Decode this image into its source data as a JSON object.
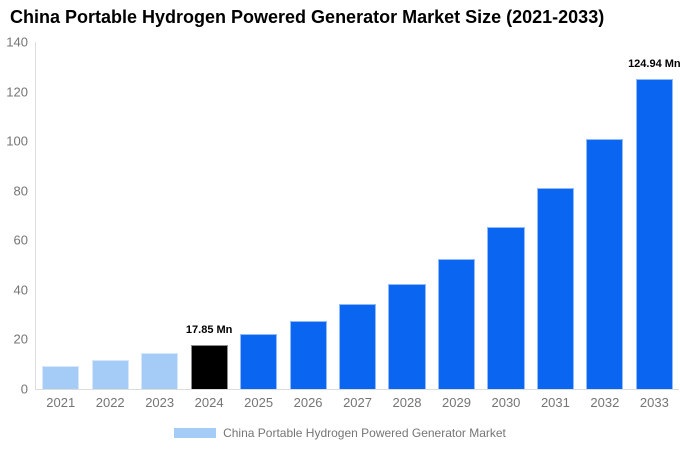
{
  "chart_data": {
    "type": "bar",
    "title": "China Portable Hydrogen Powered Generator Market Size (2021-2033)",
    "unit": "Mn",
    "categories": [
      "2021",
      "2022",
      "2023",
      "2024",
      "2025",
      "2026",
      "2027",
      "2028",
      "2029",
      "2030",
      "2031",
      "2032",
      "2033"
    ],
    "values": [
      9.33,
      11.58,
      14.38,
      17.85,
      22.16,
      27.51,
      34.15,
      42.4,
      52.64,
      65.34,
      81.12,
      100.71,
      124.94
    ],
    "point_labels": [
      "",
      "",
      "",
      "17.85 Mn",
      "",
      "",
      "",
      "",
      "",
      "",
      "",
      "",
      "124.94 Mn"
    ],
    "bar_colors": [
      "#a5cbf7",
      "#a5cbf7",
      "#a5cbf7",
      "#000000",
      "#0a66f0",
      "#0a66f0",
      "#0a66f0",
      "#0a66f0",
      "#0a66f0",
      "#0a66f0",
      "#0a66f0",
      "#0a66f0",
      "#0a66f0"
    ],
    "ylim": [
      0,
      140
    ],
    "yticks": [
      0,
      20,
      40,
      60,
      80,
      100,
      120,
      140
    ],
    "grid": false,
    "xlabel": "",
    "ylabel": "",
    "legend": {
      "position": "bottom",
      "entries": [
        {
          "label": "China Portable Hydrogen Powered Generator Market",
          "swatch_color": "#a5cbf7"
        }
      ]
    },
    "colors": {
      "axis_line": "#dcdcdc",
      "tick_text": "#757575",
      "title_text": "#000000",
      "point_label_text": "#000000"
    }
  }
}
